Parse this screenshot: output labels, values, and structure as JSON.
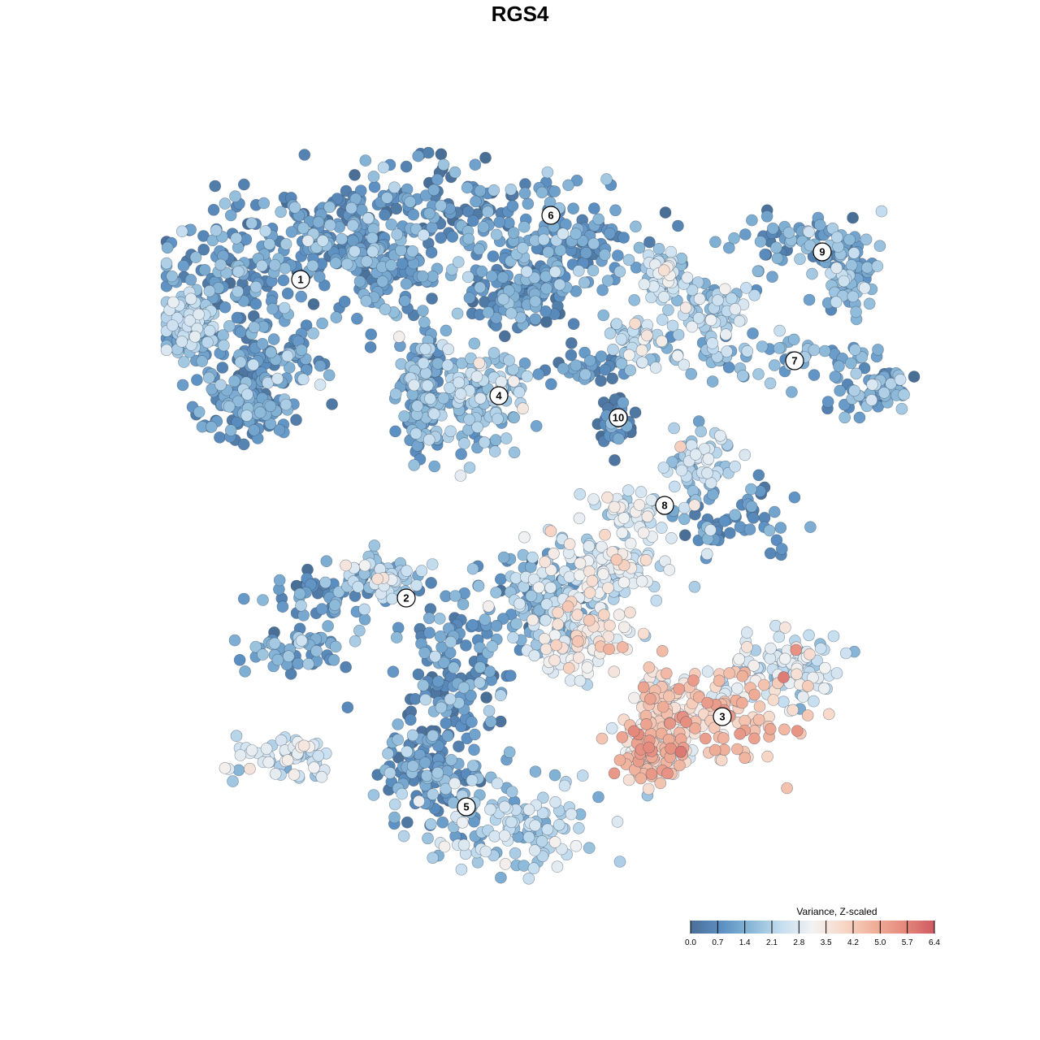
{
  "chart_data": {
    "type": "scatter",
    "title": "RGS4",
    "xlabel": "",
    "ylabel": "",
    "grid": false,
    "legend_placement": "bottom-right",
    "colorbar": {
      "title": "Variance, Z-scaled",
      "ticks": [
        "0.0",
        "0.7",
        "1.4",
        "2.1",
        "2.8",
        "3.5",
        "4.2",
        "5.0",
        "5.7",
        "6.4"
      ],
      "range": [
        0.0,
        6.4
      ],
      "colors": [
        "#4a6f97",
        "#5b8fc2",
        "#8ab8d8",
        "#c6def0",
        "#f2f2f2",
        "#f8d8c8",
        "#f0b09a",
        "#e58a7c",
        "#cf5a62"
      ]
    },
    "clusters": [
      {
        "label": "1",
        "center": [
          370,
          344
        ],
        "blobs": [
          [
            280,
            330,
            90,
            70,
            1.1
          ],
          [
            330,
            440,
            70,
            60,
            1.0
          ],
          [
            400,
            290,
            80,
            45,
            1.0
          ],
          [
            300,
            500,
            55,
            40,
            0.9
          ],
          [
            230,
            400,
            25,
            35,
            1.7
          ]
        ],
        "n": 620
      },
      {
        "label": "6",
        "center": [
          678,
          265
        ],
        "blobs": [
          [
            560,
            250,
            130,
            50,
            0.9
          ],
          [
            700,
            300,
            90,
            55,
            1.0
          ],
          [
            470,
            330,
            60,
            50,
            1.0
          ],
          [
            640,
            360,
            60,
            35,
            0.7
          ]
        ],
        "n": 520
      },
      {
        "label": "4",
        "center": [
          614,
          487
        ],
        "blobs": [
          [
            585,
            490,
            65,
            70,
            1.9
          ],
          [
            520,
            480,
            25,
            60,
            1.2
          ]
        ],
        "n": 280
      },
      {
        "label": "10",
        "center": [
          761,
          514
        ],
        "blobs": [
          [
            760,
            520,
            22,
            30,
            0.4
          ],
          [
            720,
            450,
            35,
            25,
            0.8
          ]
        ],
        "n": 70
      },
      {
        "label": "9",
        "center": [
          1012,
          310
        ],
        "blobs": [
          [
            980,
            300,
            80,
            35,
            1.1
          ],
          [
            1050,
            340,
            25,
            40,
            1.5
          ]
        ],
        "n": 140
      },
      {
        "label": "7",
        "center": [
          978,
          444
        ],
        "blobs": [
          [
            950,
            440,
            110,
            30,
            1.6
          ],
          [
            1070,
            480,
            50,
            25,
            1.2
          ],
          [
            880,
            380,
            40,
            30,
            2.0
          ],
          [
            820,
            340,
            30,
            20,
            2.3
          ]
        ],
        "n": 260
      },
      {
        "label": "8",
        "center": [
          818,
          622
        ],
        "blobs": [
          [
            860,
            560,
            40,
            45,
            2.2
          ],
          [
            910,
            640,
            70,
            40,
            0.8
          ],
          [
            790,
            420,
            40,
            25,
            2.1
          ],
          [
            780,
            630,
            50,
            20,
            2.5
          ]
        ],
        "n": 230
      },
      {
        "label": "2",
        "center": [
          500,
          736
        ],
        "blobs": [
          [
            400,
            730,
            60,
            35,
            0.9
          ],
          [
            370,
            800,
            55,
            30,
            1.2
          ],
          [
            470,
            710,
            40,
            25,
            2.1
          ],
          [
            350,
            930,
            55,
            25,
            2.6
          ]
        ],
        "n": 230
      },
      {
        "label": "5",
        "center": [
          574,
          993
        ],
        "blobs": [
          [
            560,
            830,
            60,
            80,
            0.9
          ],
          [
            530,
            950,
            55,
            60,
            1.0
          ],
          [
            630,
            1020,
            100,
            55,
            2.0
          ],
          [
            660,
            740,
            70,
            55,
            1.5
          ],
          [
            750,
            700,
            80,
            40,
            2.8
          ]
        ],
        "n": 640
      },
      {
        "label": "3",
        "center": [
          889,
          882
        ],
        "blobs": [
          [
            890,
            880,
            90,
            60,
            4.5
          ],
          [
            800,
            930,
            45,
            30,
            4.2
          ],
          [
            960,
            820,
            70,
            40,
            2.6
          ],
          [
            720,
            790,
            60,
            40,
            3.2
          ],
          [
            820,
            870,
            40,
            40,
            3.6
          ]
        ],
        "n": 520
      }
    ]
  }
}
